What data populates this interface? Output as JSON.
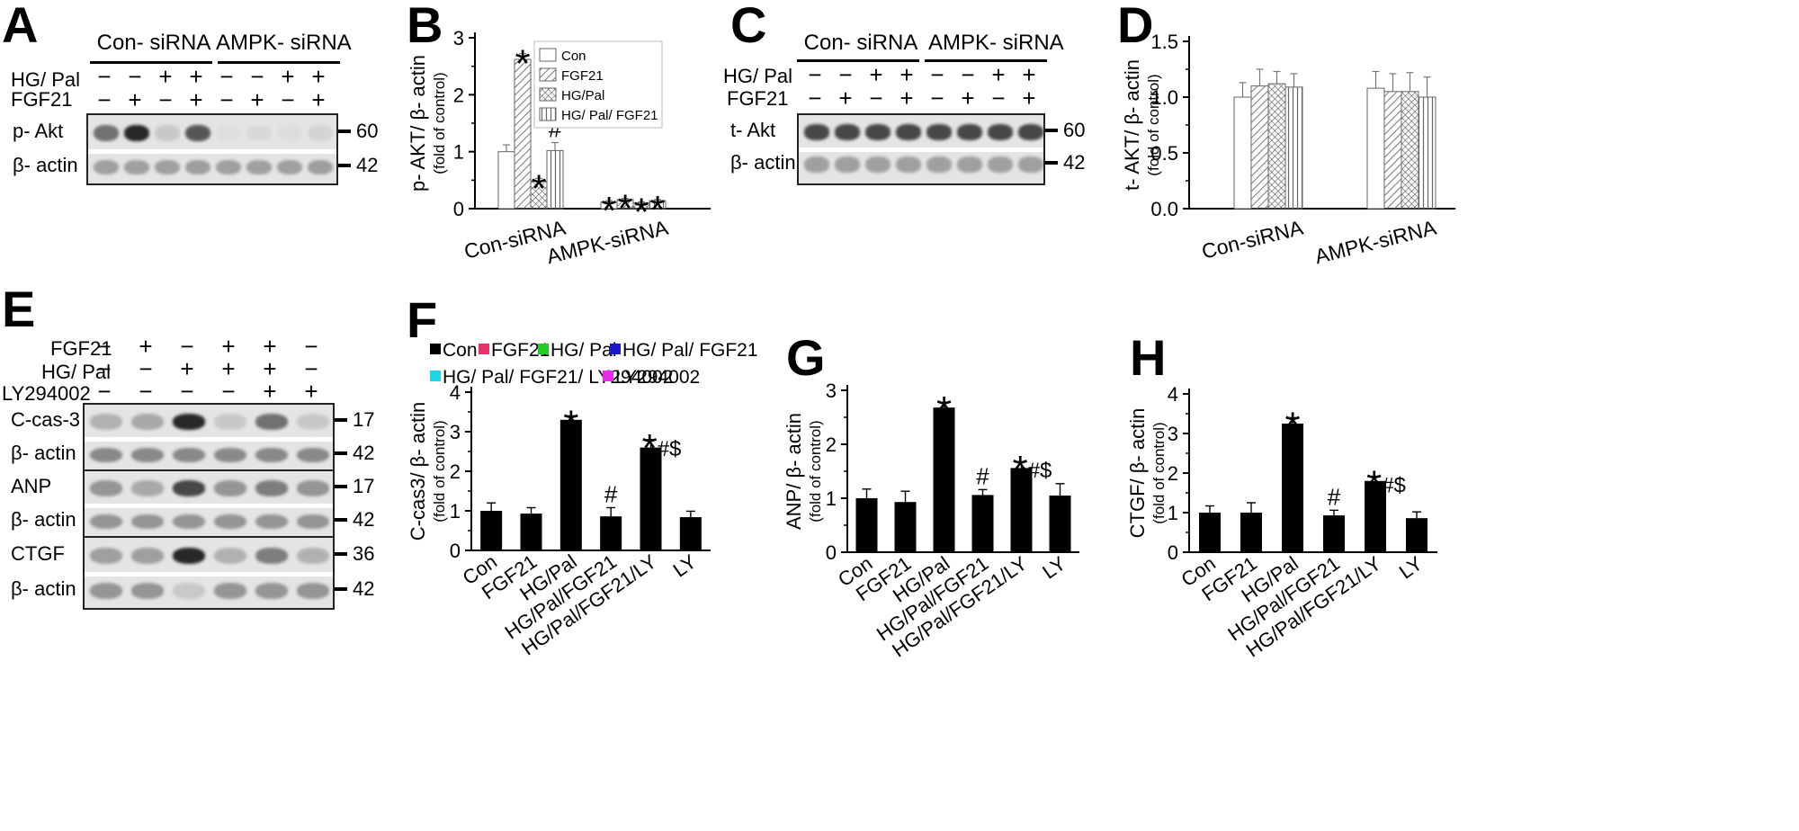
{
  "panels": {
    "A": {
      "letter": "A",
      "groups": [
        "Con- siRNA",
        "AMPK- siRNA"
      ],
      "rows": [
        {
          "label": "HG/ Pal",
          "signs": [
            "−",
            "−",
            "+",
            "+",
            "−",
            "−",
            "+",
            "+"
          ]
        },
        {
          "label": "FGF21",
          "signs": [
            "−",
            "+",
            "−",
            "+",
            "−",
            "+",
            "−",
            "+"
          ]
        }
      ],
      "blots": [
        {
          "label": "p- Akt",
          "mw": "60",
          "intensity": [
            0.75,
            1.0,
            0.3,
            0.85,
            0.08,
            0.15,
            0.1,
            0.2
          ]
        },
        {
          "label": "β- actin",
          "mw": "42",
          "intensity": [
            0.55,
            0.55,
            0.55,
            0.55,
            0.55,
            0.55,
            0.55,
            0.55
          ]
        }
      ]
    },
    "C": {
      "letter": "C",
      "groups": [
        "Con- siRNA",
        "AMPK- siRNA"
      ],
      "rows": [
        {
          "label": "HG/ Pal",
          "signs": [
            "−",
            "−",
            "+",
            "+",
            "−",
            "−",
            "+",
            "+"
          ]
        },
        {
          "label": "FGF21",
          "signs": [
            "−",
            "+",
            "−",
            "+",
            "−",
            "+",
            "−",
            "+"
          ]
        }
      ],
      "blots": [
        {
          "label": "t- Akt",
          "mw": "60",
          "intensity": [
            0.9,
            0.9,
            0.9,
            0.9,
            0.9,
            0.9,
            0.9,
            0.9
          ]
        },
        {
          "label": "β- actin",
          "mw": "42",
          "intensity": [
            0.55,
            0.55,
            0.55,
            0.55,
            0.55,
            0.55,
            0.55,
            0.55
          ]
        }
      ]
    },
    "E": {
      "letter": "E",
      "rows": [
        {
          "label": "FGF21",
          "signs": [
            "−",
            "+",
            "−",
            "+",
            "+",
            "−"
          ]
        },
        {
          "label": "HG/ Pal",
          "signs": [
            "−",
            "−",
            "+",
            "+",
            "+",
            "−"
          ]
        },
        {
          "label": "LY294002",
          "signs": [
            "−",
            "−",
            "−",
            "−",
            "+",
            "+"
          ]
        }
      ],
      "blots": [
        {
          "label": "C-cas-3",
          "mw": "17",
          "intensity": [
            0.45,
            0.5,
            1.0,
            0.3,
            0.75,
            0.3
          ]
        },
        {
          "label": "β- actin",
          "mw": "42",
          "intensity": [
            0.65,
            0.65,
            0.65,
            0.65,
            0.65,
            0.65
          ]
        },
        {
          "label": "ANP",
          "mw": "17",
          "intensity": [
            0.6,
            0.5,
            0.9,
            0.6,
            0.7,
            0.6
          ]
        },
        {
          "label": "β- actin",
          "mw": "42",
          "intensity": [
            0.6,
            0.6,
            0.6,
            0.6,
            0.6,
            0.6
          ]
        },
        {
          "label": "CTGF",
          "mw": "36",
          "intensity": [
            0.55,
            0.55,
            1.0,
            0.45,
            0.7,
            0.45
          ]
        },
        {
          "label": "β- actin",
          "mw": "42",
          "intensity": [
            0.6,
            0.6,
            0.3,
            0.6,
            0.6,
            0.6
          ]
        }
      ]
    }
  },
  "chart_data": [
    {
      "id": "B",
      "letter": "B",
      "type": "bar",
      "title": "",
      "ylabel": "p- AKT/ β- actin",
      "ylabel2": "(fold of control)",
      "ylim": [
        0,
        3
      ],
      "yticks": [
        0,
        1,
        2,
        3
      ],
      "categories": [
        "Con-siRNA",
        "AMPK-siRNA"
      ],
      "series": [
        {
          "name": "Con",
          "pattern": "none",
          "values": [
            1.0,
            0.12
          ],
          "errors": [
            0.12,
            0.02
          ],
          "annot": [
            "",
            "*"
          ]
        },
        {
          "name": "FGF21",
          "pattern": "diag",
          "values": [
            2.62,
            0.16
          ],
          "errors": [
            0.1,
            0.02
          ],
          "annot": [
            "*",
            "*"
          ]
        },
        {
          "name": "HG/Pal",
          "pattern": "cross",
          "values": [
            0.48,
            0.1
          ],
          "errors": [
            0.05,
            0.02
          ],
          "annot": [
            "*",
            "*"
          ]
        },
        {
          "name": "HG/ Pal/ FGF21",
          "pattern": "vert",
          "values": [
            1.02,
            0.14
          ],
          "errors": [
            0.14,
            0.02
          ],
          "annot": [
            "#",
            "*"
          ]
        }
      ],
      "legend": "top-right"
    },
    {
      "id": "D",
      "letter": "D",
      "type": "bar",
      "title": "",
      "ylabel": "t- AKT/ β- actin",
      "ylabel2": "(fold of control)",
      "ylim": [
        0,
        1.5
      ],
      "yticks": [
        "0.0",
        "0.5",
        "1.0",
        "1.5"
      ],
      "categories": [
        "Con-siRNA",
        "AMPK-siRNA"
      ],
      "series": [
        {
          "name": "Con",
          "pattern": "none",
          "values": [
            1.0,
            1.08
          ],
          "errors": [
            0.13,
            0.15
          ],
          "annot": [
            "",
            ""
          ]
        },
        {
          "name": "FGF21",
          "pattern": "diag",
          "values": [
            1.1,
            1.05
          ],
          "errors": [
            0.15,
            0.16
          ],
          "annot": [
            "",
            ""
          ]
        },
        {
          "name": "HG/Pal",
          "pattern": "cross",
          "values": [
            1.12,
            1.05
          ],
          "errors": [
            0.11,
            0.17
          ],
          "annot": [
            "",
            ""
          ]
        },
        {
          "name": "HG/ Pal/ FGF21",
          "pattern": "vert",
          "values": [
            1.09,
            1.0
          ],
          "errors": [
            0.12,
            0.18
          ],
          "annot": [
            "",
            ""
          ]
        }
      ],
      "legend": "none"
    },
    {
      "id": "F",
      "letter": "F",
      "type": "bar",
      "title": "",
      "ylabel": "C-cas3/ β- actin",
      "ylabel2": "(fold of control)",
      "ylim": [
        0,
        4
      ],
      "yticks": [
        0,
        1,
        2,
        3,
        4
      ],
      "categories": [
        "Con",
        "FGF21",
        "HG/Pal",
        "HG/Pal/FGF21",
        "HG/Pal/FGF21/LY",
        "LY"
      ],
      "values": [
        1.0,
        0.93,
        3.3,
        0.86,
        2.6,
        0.84
      ],
      "errors": [
        0.2,
        0.15,
        0.1,
        0.22,
        0.2,
        0.15
      ],
      "annot": [
        "",
        "",
        "*",
        "#",
        "*#$",
        ""
      ],
      "legend_items": [
        {
          "label": "Con",
          "color": "#000000"
        },
        {
          "label": "FGF21",
          "color": "#e8326a"
        },
        {
          "label": "HG/ Pal",
          "color": "#22cc22"
        },
        {
          "label": "HG/ Pal/ FGF21",
          "color": "#1a1acc"
        },
        {
          "label": "HG/ Pal/ FGF21/ LY294002",
          "color": "#22d6e6"
        },
        {
          "label": "LY294002",
          "color": "#e62ae6"
        }
      ]
    },
    {
      "id": "G",
      "letter": "G",
      "type": "bar",
      "title": "",
      "ylabel": "ANP/ β- actin",
      "ylabel2": "(fold of control)",
      "ylim": [
        0,
        3
      ],
      "yticks": [
        0,
        1,
        2,
        3
      ],
      "categories": [
        "Con",
        "FGF21",
        "HG/Pal",
        "HG/Pal/FGF21",
        "HG/Pal/FGF21/LY",
        "LY"
      ],
      "values": [
        1.0,
        0.93,
        2.68,
        1.06,
        1.56,
        1.05
      ],
      "errors": [
        0.17,
        0.2,
        0.1,
        0.1,
        0.12,
        0.22
      ],
      "annot": [
        "",
        "",
        "*",
        "#",
        "*#$",
        ""
      ]
    },
    {
      "id": "H",
      "letter": "H",
      "type": "bar",
      "title": "",
      "ylabel": "CTGF/ β- actin",
      "ylabel2": "(fold of control)",
      "ylim": [
        0,
        4
      ],
      "yticks": [
        0,
        1,
        2,
        3,
        4
      ],
      "categories": [
        "Con",
        "FGF21",
        "HG/Pal",
        "HG/Pal/FGF21",
        "HG/Pal/FGF21/LY",
        "LY"
      ],
      "values": [
        1.0,
        1.0,
        3.25,
        0.93,
        1.8,
        0.86
      ],
      "errors": [
        0.17,
        0.25,
        0.15,
        0.13,
        0.12,
        0.16
      ],
      "annot": [
        "",
        "",
        "*",
        "#",
        "*#$",
        ""
      ]
    }
  ]
}
